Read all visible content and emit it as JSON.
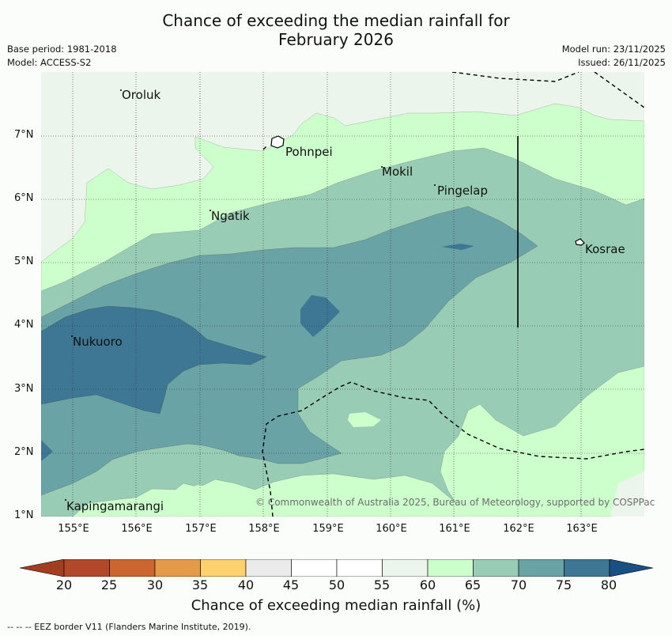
{
  "title_line1": "Chance of exceeding the median rainfall for",
  "title_line2": "February 2026",
  "base_period": "Base period: 1981-2018",
  "model": "Model: ACCESS-S2",
  "model_run": "Model run: 23/11/2025",
  "issued": "Issued: 26/11/2025",
  "y_ticks": [
    "7°N",
    "6°N",
    "5°N",
    "4°N",
    "3°N",
    "2°N",
    "1°N"
  ],
  "x_ticks": [
    "155°E",
    "156°E",
    "157°E",
    "158°E",
    "159°E",
    "160°E",
    "161°E",
    "162°E",
    "163°E"
  ],
  "places": {
    "oroluk": "Oroluk",
    "pohnpei": "Pohnpei",
    "mokil": "Mokil",
    "pingelap": "Pingelap",
    "ngatik": "Ngatik",
    "kosrae": "Kosrae",
    "nukuoro": "Nukuoro",
    "kapingamarangi": "Kapingamarangi"
  },
  "copyright": "© Commonwealth of Australia 2025, Bureau of Meteorology, supported by COSPPac",
  "colorbar": {
    "ticks": [
      "20",
      "25",
      "30",
      "35",
      "40",
      "45",
      "50",
      "55",
      "60",
      "65",
      "70",
      "75",
      "80"
    ],
    "colors": [
      "#a03e1f",
      "#b2482a",
      "#cc6631",
      "#e59a4a",
      "#fdd16e",
      "#ebebeb",
      "#ffffff",
      "#ffffff",
      "#ebf5eb",
      "#ccffcc",
      "#99ccb4",
      "#6aa3a6",
      "#3e7794",
      "#1a4f82"
    ],
    "label": "Chance of exceeding median rainfall (%)"
  },
  "footer": "--  --  -- EEZ border V11 (Flanders Marine Institute, 2019)."
}
